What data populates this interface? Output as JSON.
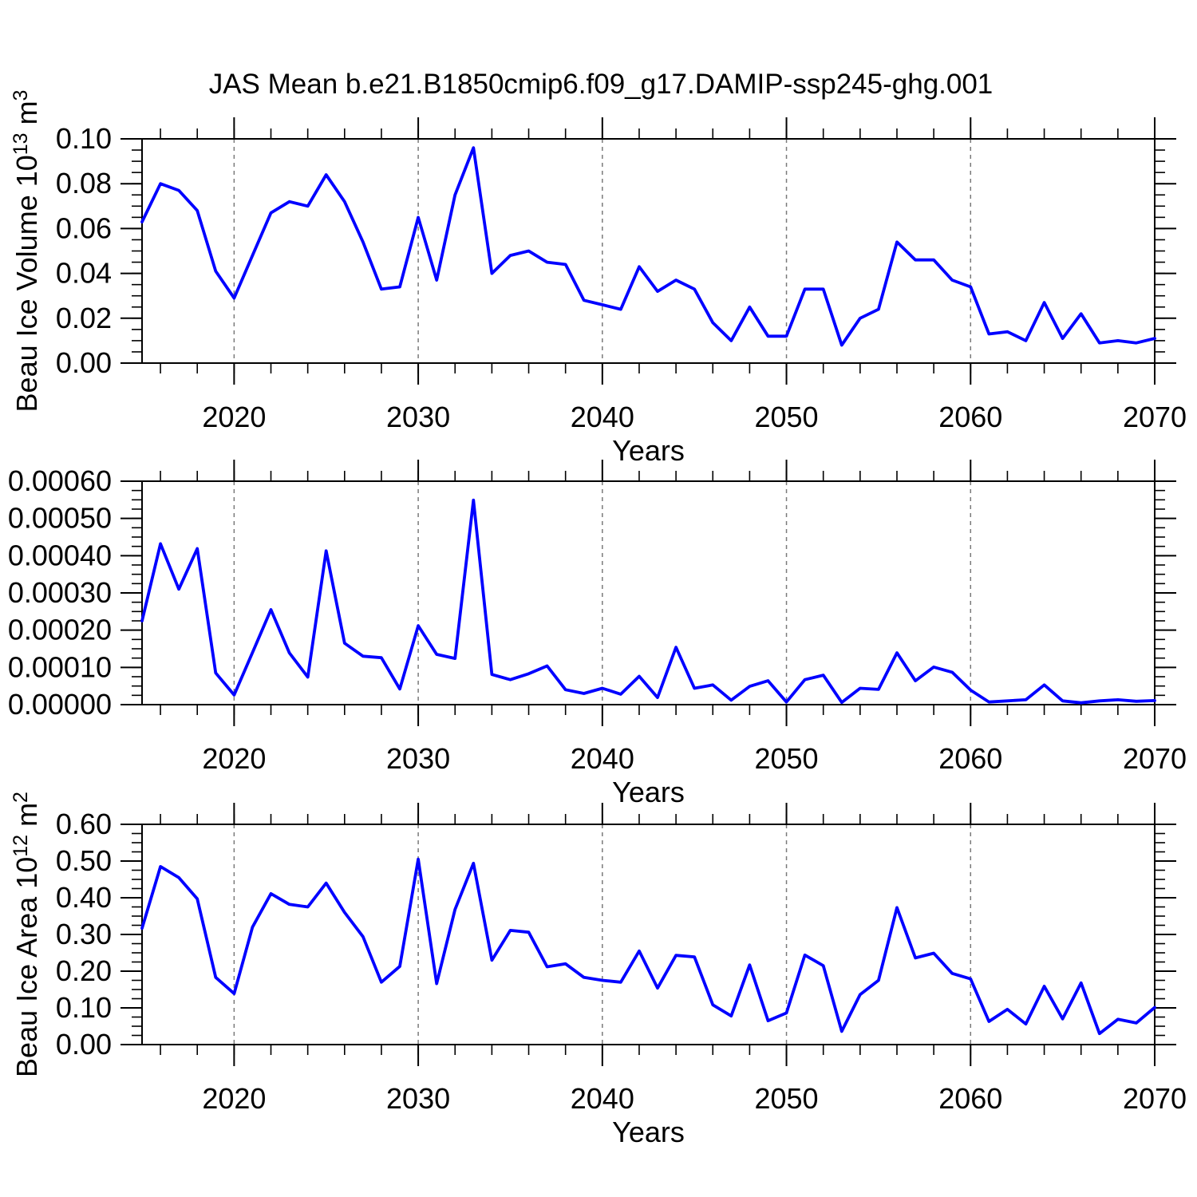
{
  "page": {
    "title": "JAS Mean b.e21.B1850cmip6.f09_g17.DAMIP-ssp245-ghg.001"
  },
  "colors": {
    "line": "#0000ff",
    "grid": "#7a7a7a",
    "axis": "#000000",
    "background": "#ffffff",
    "text": "#000000"
  },
  "x_axis": {
    "label": "Years",
    "start": 2015,
    "end": 2070,
    "major_ticks": [
      2020,
      2030,
      2040,
      2050,
      2060,
      2070
    ],
    "major_tick_labels": [
      "2020",
      "2030",
      "2040",
      "2050",
      "2060",
      "2070"
    ],
    "minor_step": 2,
    "gridlines": [
      2020,
      2030,
      2040,
      2050,
      2060
    ]
  },
  "years": [
    2015,
    2016,
    2017,
    2018,
    2019,
    2020,
    2021,
    2022,
    2023,
    2024,
    2025,
    2026,
    2027,
    2028,
    2029,
    2030,
    2031,
    2032,
    2033,
    2034,
    2035,
    2036,
    2037,
    2038,
    2039,
    2040,
    2041,
    2042,
    2043,
    2044,
    2045,
    2046,
    2047,
    2048,
    2049,
    2050,
    2051,
    2052,
    2053,
    2054,
    2055,
    2056,
    2057,
    2058,
    2059,
    2060,
    2061,
    2062,
    2063,
    2064,
    2065,
    2066,
    2067,
    2068,
    2069,
    2070
  ],
  "chart_data": [
    {
      "type": "line",
      "name": "beau-ice-volume",
      "title": "JAS Mean b.e21.B1850cmip6.f09_g17.DAMIP-ssp245-ghg.001",
      "xlabel": "Years",
      "ylabel": "Beau Ice Volume 10^13 m^3",
      "ylabel_parts": [
        {
          "t": "Beau Ice Volume 10"
        },
        {
          "t": "13",
          "sup": true
        },
        {
          "t": " m"
        },
        {
          "t": "3",
          "sup": true
        }
      ],
      "ylim": [
        0,
        0.1
      ],
      "ytick_labels": [
        "0.00",
        "0.02",
        "0.04",
        "0.06",
        "0.08",
        "0.10"
      ],
      "yminor_step": 0.005,
      "grid": "vertical-dashed",
      "legend": "none",
      "values": [
        0.063,
        0.08,
        0.077,
        0.068,
        0.041,
        0.029,
        0.048,
        0.067,
        0.072,
        0.07,
        0.084,
        0.072,
        0.054,
        0.033,
        0.034,
        0.065,
        0.037,
        0.075,
        0.096,
        0.04,
        0.048,
        0.05,
        0.045,
        0.044,
        0.028,
        0.026,
        0.024,
        0.043,
        0.032,
        0.037,
        0.033,
        0.018,
        0.01,
        0.025,
        0.012,
        0.012,
        0.033,
        0.033,
        0.008,
        0.02,
        0.024,
        0.054,
        0.046,
        0.046,
        0.037,
        0.034,
        0.013,
        0.014,
        0.01,
        0.027,
        0.011,
        0.022,
        0.009,
        0.01,
        0.009,
        0.011
      ]
    },
    {
      "type": "line",
      "name": "beau-ice-middle-series",
      "title": "",
      "xlabel": "Years",
      "ylabel": "",
      "ylabel_parts": [],
      "ylim": [
        0,
        0.0006
      ],
      "ytick_labels": [
        "0.00000",
        "0.00010",
        "0.00020",
        "0.00030",
        "0.00040",
        "0.00050",
        "0.00060"
      ],
      "yminor_step": 2.5e-05,
      "grid": "vertical-dashed",
      "legend": "none",
      "values": [
        0.000225,
        0.000432,
        0.00031,
        0.000419,
        8.5e-05,
        2.6e-05,
        0.00014,
        0.000255,
        0.000139,
        7.4e-05,
        0.000413,
        0.000165,
        0.00013,
        0.000126,
        4.2e-05,
        0.000212,
        0.000135,
        0.000124,
        0.000549,
        8.1e-05,
        6.7e-05,
        8.3e-05,
        0.000104,
        4e-05,
        3e-05,
        4.4e-05,
        2.8e-05,
        7.6e-05,
        1.9e-05,
        0.000154,
        4.4e-05,
        5.3e-05,
        1.2e-05,
        4.9e-05,
        6.4e-05,
        7e-06,
        6.7e-05,
        7.9e-05,
        6e-06,
        4.4e-05,
        4.1e-05,
        0.000139,
        6.4e-05,
        0.000101,
        8.7e-05,
        3.9e-05,
        7e-06,
        1e-05,
        1.3e-05,
        5.3e-05,
        1e-05,
        5e-06,
        1e-05,
        1.3e-05,
        9e-06,
        1.1e-05
      ]
    },
    {
      "type": "line",
      "name": "beau-ice-area",
      "title": "",
      "xlabel": "Years",
      "ylabel": "Beau Ice Area 10^12 m^2",
      "ylabel_parts": [
        {
          "t": "Beau Ice Area 10"
        },
        {
          "t": "12",
          "sup": true
        },
        {
          "t": " m"
        },
        {
          "t": "2",
          "sup": true
        }
      ],
      "ylim": [
        0,
        0.6
      ],
      "ytick_labels": [
        "0.00",
        "0.10",
        "0.20",
        "0.30",
        "0.40",
        "0.50",
        "0.60"
      ],
      "yminor_step": 0.025,
      "grid": "vertical-dashed",
      "legend": "none",
      "values": [
        0.317,
        0.485,
        0.455,
        0.397,
        0.183,
        0.139,
        0.32,
        0.411,
        0.382,
        0.375,
        0.44,
        0.36,
        0.294,
        0.17,
        0.213,
        0.505,
        0.166,
        0.368,
        0.494,
        0.23,
        0.311,
        0.306,
        0.212,
        0.22,
        0.183,
        0.175,
        0.17,
        0.255,
        0.154,
        0.243,
        0.239,
        0.108,
        0.078,
        0.217,
        0.065,
        0.086,
        0.244,
        0.215,
        0.036,
        0.136,
        0.175,
        0.373,
        0.236,
        0.249,
        0.194,
        0.179,
        0.063,
        0.096,
        0.056,
        0.159,
        0.07,
        0.168,
        0.03,
        0.069,
        0.059,
        0.101
      ]
    }
  ]
}
